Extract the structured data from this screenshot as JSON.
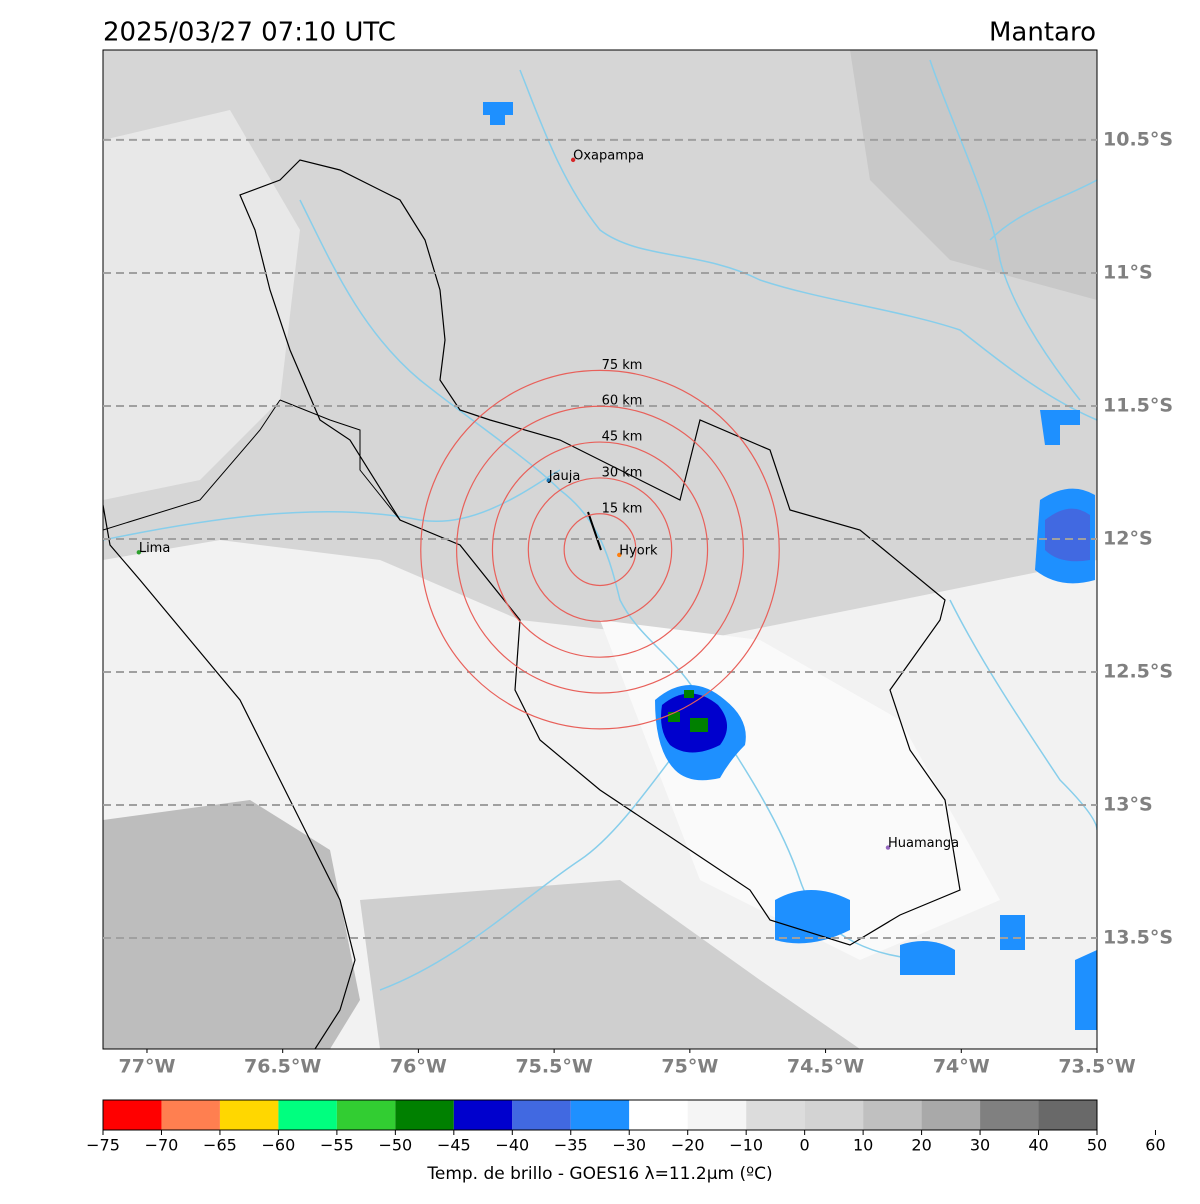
{
  "header": {
    "datetime": "2025/03/27 07:10 UTC",
    "region": "Mantaro"
  },
  "map": {
    "lonlim": [
      -77.162,
      -73.5
    ],
    "latlim": [
      -10.162,
      -13.917
    ],
    "lon_ticks": [
      {
        "value": -77,
        "label": "77°W"
      },
      {
        "value": -76.5,
        "label": "76.5°W"
      },
      {
        "value": -76,
        "label": "76°W"
      },
      {
        "value": -75.5,
        "label": "75.5°W"
      },
      {
        "value": -75,
        "label": "75°W"
      },
      {
        "value": -74.5,
        "label": "74.5°W"
      },
      {
        "value": -74,
        "label": "74°W"
      },
      {
        "value": -73.5,
        "label": "73.5°W"
      }
    ],
    "lat_ticks": [
      {
        "value": -10.5,
        "label": "10.5°S"
      },
      {
        "value": -11,
        "label": "11°S"
      },
      {
        "value": -11.5,
        "label": "11.5°S"
      },
      {
        "value": -12,
        "label": "12°S"
      },
      {
        "value": -12.5,
        "label": "12.5°S"
      },
      {
        "value": -13,
        "label": "13°S"
      },
      {
        "value": -13.5,
        "label": "13.5°S"
      }
    ],
    "range_rings": {
      "center_lon": -75.331,
      "center_lat": -12.04,
      "radii": [
        15,
        30,
        45,
        60,
        75
      ],
      "value_labels": [
        "15 km",
        "30 km",
        "45 km",
        "60 km",
        "75 km"
      ]
    },
    "places": [
      {
        "name": "Oxapampa",
        "lon": -75.43,
        "lat": -10.575,
        "color": "#d62728"
      },
      {
        "name": "Jauja",
        "lon": -75.52,
        "lat": -11.78,
        "color": "#1f77b4"
      },
      {
        "name": "Hyork",
        "lon": -75.26,
        "lat": -12.06,
        "color": "#ff7f0e"
      },
      {
        "name": "Huamanga",
        "lon": -74.27,
        "lat": -13.16,
        "color": "#9467bd"
      },
      {
        "name": "Lima",
        "lon": -77.03,
        "lat": -12.05,
        "color": "#2ca02c"
      }
    ]
  },
  "colorbar": {
    "label": "Temp. de brillo - GOES16 λ=11.2μm (ºC)",
    "bounds": [
      {
        "value": -75,
        "label": "−75"
      },
      {
        "value": -70,
        "label": "−70"
      },
      {
        "value": -65,
        "label": "−65"
      },
      {
        "value": -60,
        "label": "−60"
      },
      {
        "value": -55,
        "label": "−55"
      },
      {
        "value": -50,
        "label": "−50"
      },
      {
        "value": -45,
        "label": "−45"
      },
      {
        "value": -40,
        "label": "−40"
      },
      {
        "value": -35,
        "label": "−35"
      },
      {
        "value": -30,
        "label": "−30"
      },
      {
        "value": -20,
        "label": "−20"
      },
      {
        "value": -10,
        "label": "−10"
      },
      0,
      10,
      20,
      30,
      40,
      50,
      60
    ],
    "colors": [
      "#ff0000",
      "#ff7f50",
      "#ffd700",
      "#00ff7f",
      "#32cd32",
      "#008000",
      "#0000cd",
      "#4169e1",
      "#1e90ff",
      "#ffffff",
      "#f5f5f5",
      "#dcdcdc",
      "#d3d3d3",
      "#c0c0c0",
      "#a9a9a9",
      "#808080",
      "#696969",
      "#000000"
    ]
  }
}
